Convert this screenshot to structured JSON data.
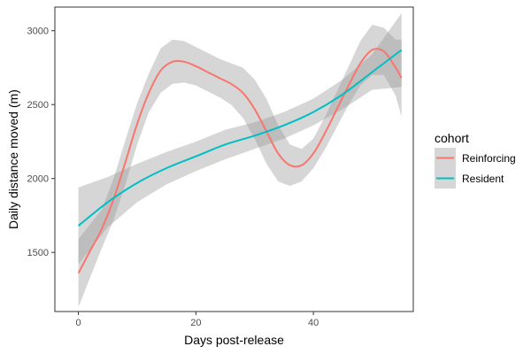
{
  "chart_data": {
    "type": "line",
    "title": "",
    "xlabel": "Days post-release",
    "ylabel": "Daily distance moved (m)",
    "xlim": [
      -4,
      57
    ],
    "ylim": [
      1100,
      3160
    ],
    "x_ticks": [
      0,
      20,
      40
    ],
    "y_ticks": [
      1500,
      2000,
      2500,
      3000
    ],
    "grid": false,
    "legend": {
      "title": "cohort",
      "position": "right"
    },
    "series": [
      {
        "name": "Reinforcing",
        "color": "#F8766D",
        "x": [
          0,
          2,
          4,
          6,
          8,
          10,
          12,
          14,
          16,
          18,
          20,
          22,
          24,
          26,
          28,
          30,
          32,
          34,
          36,
          38,
          40,
          42,
          44,
          46,
          48,
          50,
          52,
          54,
          55
        ],
        "y": [
          1360,
          1510,
          1660,
          1860,
          2110,
          2370,
          2580,
          2730,
          2790,
          2790,
          2760,
          2720,
          2680,
          2640,
          2580,
          2470,
          2320,
          2170,
          2090,
          2090,
          2170,
          2310,
          2470,
          2630,
          2780,
          2870,
          2860,
          2750,
          2680
        ],
        "ci_low": [
          1130,
          1330,
          1530,
          1720,
          1960,
          2230,
          2450,
          2580,
          2640,
          2650,
          2630,
          2590,
          2550,
          2500,
          2410,
          2270,
          2100,
          1980,
          1950,
          1980,
          2070,
          2200,
          2350,
          2500,
          2630,
          2700,
          2700,
          2560,
          2420
        ],
        "ci_high": [
          1590,
          1690,
          1790,
          2000,
          2260,
          2510,
          2710,
          2880,
          2940,
          2930,
          2890,
          2850,
          2810,
          2780,
          2750,
          2670,
          2540,
          2360,
          2230,
          2200,
          2270,
          2420,
          2590,
          2760,
          2930,
          3040,
          3020,
          2940,
          2940
        ]
      },
      {
        "name": "Resident",
        "color": "#00BFC4",
        "x": [
          0,
          5,
          10,
          15,
          20,
          25,
          30,
          35,
          40,
          45,
          50,
          55
        ],
        "y": [
          1680,
          1840,
          1970,
          2070,
          2150,
          2230,
          2290,
          2360,
          2450,
          2570,
          2720,
          2870
        ],
        "ci_low": [
          1420,
          1670,
          1840,
          1960,
          2050,
          2130,
          2200,
          2270,
          2360,
          2470,
          2600,
          2620
        ],
        "ci_high": [
          1940,
          2010,
          2100,
          2180,
          2250,
          2330,
          2380,
          2450,
          2540,
          2670,
          2840,
          3120
        ]
      }
    ]
  }
}
